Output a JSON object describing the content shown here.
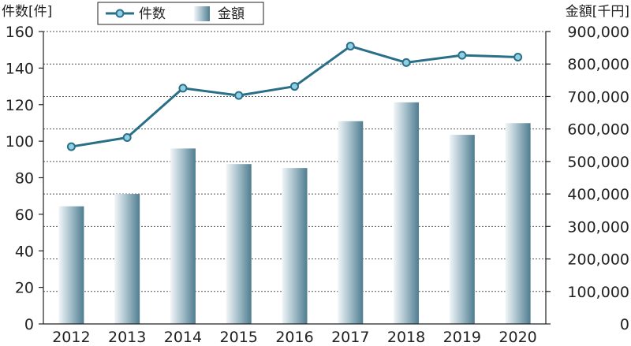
{
  "chart_data": {
    "type": "bar+line",
    "categories": [
      "2012",
      "2013",
      "2014",
      "2015",
      "2016",
      "2017",
      "2018",
      "2019",
      "2020"
    ],
    "series": [
      {
        "name": "件数",
        "type": "line",
        "axis": "left",
        "values": [
          97,
          102,
          129,
          125,
          130,
          152,
          143,
          147,
          146
        ],
        "color": "#2a6f88"
      },
      {
        "name": "金額",
        "type": "bar",
        "axis": "right",
        "values": [
          362000,
          400000,
          540000,
          492000,
          480000,
          624000,
          682000,
          582000,
          618000
        ],
        "color": "#6f96a6"
      }
    ],
    "ylabel_left": "件数[件]",
    "ylabel_right": "金額[千円]",
    "ylim_left": [
      0,
      160
    ],
    "yticks_left": [
      "0",
      "20",
      "40",
      "60",
      "80",
      "100",
      "120",
      "140",
      "160"
    ],
    "ylim_right": [
      0,
      900000
    ],
    "yticks_right": [
      "0",
      "100,000",
      "200,000",
      "300,000",
      "400,000",
      "500,000",
      "600,000",
      "700,000",
      "800,000",
      "900,000"
    ],
    "grid": "horizontal dashed",
    "legend_position": "top-center"
  }
}
